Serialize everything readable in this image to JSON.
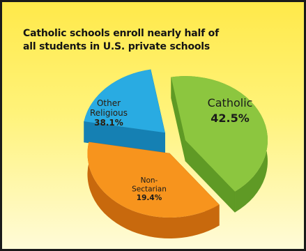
{
  "title_lines": [
    "Catholic schools enroll nearly half of",
    "all students in U.S. private schools"
  ],
  "chart_data": {
    "type": "pie",
    "title": "Catholic schools enroll nearly half of all students in U.S. private schools",
    "series": [
      {
        "name": "Catholic",
        "label_lines": [
          "Catholic"
        ],
        "value": 42.5,
        "value_label": "42.5%",
        "color": "#8cc63f",
        "side_color": "#5f9a25"
      },
      {
        "name": "Other Religious",
        "label_lines": [
          "Other",
          "Religious"
        ],
        "value": 38.1,
        "value_label": "38.1%",
        "color": "#f7941d",
        "side_color": "#c8690d"
      },
      {
        "name": "Non-Sectarian",
        "label_lines": [
          "Non-",
          "Sectarian"
        ],
        "value": 19.4,
        "value_label": "19.4%",
        "color": "#29abe2",
        "side_color": "#1580b3"
      }
    ]
  }
}
